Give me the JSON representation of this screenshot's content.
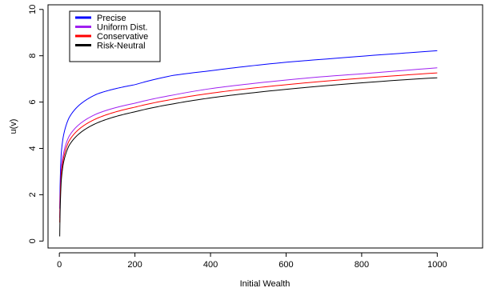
{
  "chart_data": {
    "type": "line",
    "title": "",
    "xlabel": "Initial Wealth",
    "ylabel": "u(v)",
    "xlim": [
      -30,
      1120
    ],
    "ylim": [
      -0.3,
      10.2
    ],
    "xticks": [
      0,
      200,
      400,
      600,
      800,
      1000
    ],
    "yticks": [
      0,
      2,
      4,
      6,
      8,
      10
    ],
    "grid": false,
    "legend_position": "top-left",
    "series": [
      {
        "name": "Precise",
        "color": "#0000ff",
        "x": [
          1,
          5,
          10,
          25,
          50,
          100,
          200,
          300,
          400,
          500,
          600,
          700,
          800,
          900,
          1000
        ],
        "y": [
          1.4,
          3.78,
          4.47,
          5.3,
          5.83,
          6.35,
          6.75,
          7.15,
          7.35,
          7.55,
          7.72,
          7.85,
          7.98,
          8.1,
          8.22
        ]
      },
      {
        "name": "Uniform Dist.",
        "color": "#a020f0",
        "x": [
          1,
          5,
          10,
          25,
          50,
          100,
          200,
          300,
          400,
          500,
          600,
          700,
          800,
          900,
          1000
        ],
        "y": [
          1.0,
          3.1,
          3.7,
          4.5,
          5.0,
          5.5,
          5.95,
          6.3,
          6.58,
          6.78,
          6.95,
          7.1,
          7.22,
          7.35,
          7.48
        ]
      },
      {
        "name": "Conservative",
        "color": "#ff0000",
        "x": [
          1,
          5,
          10,
          25,
          50,
          100,
          200,
          300,
          400,
          500,
          600,
          700,
          800,
          900,
          1000
        ],
        "y": [
          0.8,
          2.9,
          3.5,
          4.3,
          4.8,
          5.3,
          5.78,
          6.12,
          6.38,
          6.58,
          6.75,
          6.9,
          7.03,
          7.15,
          7.26
        ]
      },
      {
        "name": "Risk-Neutral",
        "color": "#000000",
        "x": [
          1,
          5,
          10,
          25,
          50,
          100,
          200,
          300,
          400,
          500,
          600,
          700,
          800,
          900,
          1000
        ],
        "y": [
          0.2,
          2.6,
          3.3,
          4.1,
          4.6,
          5.1,
          5.58,
          5.92,
          6.18,
          6.38,
          6.55,
          6.7,
          6.83,
          6.95,
          7.05
        ]
      }
    ]
  }
}
